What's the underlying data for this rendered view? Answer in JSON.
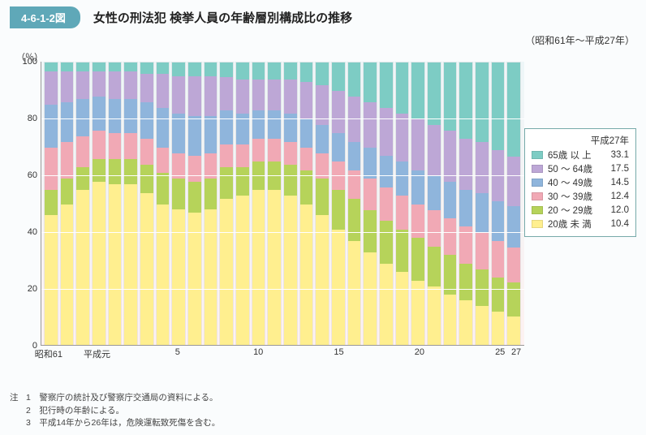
{
  "header": {
    "badge": "4-6-1-2図",
    "title": "女性の刑法犯 検挙人員の年齢層別構成比の推移",
    "subtitle": "（昭和61年～平成27年）"
  },
  "chart": {
    "type": "stacked-bar-100",
    "y_unit": "（％）",
    "ylim": [
      0,
      100
    ],
    "yticks": [
      0,
      20,
      40,
      60,
      80,
      100
    ],
    "grid_color": "#ffffff",
    "bg_gradient_top": "#eef6f8",
    "bg_gradient_bottom": "#fdf2f2",
    "series": [
      {
        "key": "u20",
        "label": "20歳 未 満",
        "color": "#ffef8f"
      },
      {
        "key": "a2029",
        "label": "20 ～ 29歳",
        "color": "#b6d35a"
      },
      {
        "key": "a3039",
        "label": "30 ～ 39歳",
        "color": "#f1a9b5"
      },
      {
        "key": "a4049",
        "label": "40 ～ 49歳",
        "color": "#8fb5dc"
      },
      {
        "key": "a5064",
        "label": "50 ～ 64歳",
        "color": "#bda7d6"
      },
      {
        "key": "a65",
        "label": "65歳 以 上",
        "color": "#7dccc4"
      }
    ],
    "years": [
      "昭和61",
      "62",
      "63",
      "平成元",
      "2",
      "3",
      "4",
      "5",
      "6",
      "7",
      "8",
      "9",
      "10",
      "11",
      "12",
      "13",
      "14",
      "15",
      "16",
      "17",
      "18",
      "19",
      "20",
      "21",
      "22",
      "23",
      "24",
      "25",
      "26",
      "27"
    ],
    "xticks": [
      {
        "i": 0,
        "label": "昭和61"
      },
      {
        "i": 3,
        "label": "平成元"
      },
      {
        "i": 8,
        "label": "5"
      },
      {
        "i": 13,
        "label": "10"
      },
      {
        "i": 18,
        "label": "15"
      },
      {
        "i": 23,
        "label": "20"
      },
      {
        "i": 28,
        "label": "25"
      },
      {
        "i": 29,
        "label": "27"
      }
    ],
    "data": [
      {
        "u20": 46,
        "a2029": 9,
        "a3039": 15,
        "a4049": 15,
        "a5064": 12,
        "a65": 3
      },
      {
        "u20": 50,
        "a2029": 9,
        "a3039": 13,
        "a4049": 14,
        "a5064": 11,
        "a65": 3
      },
      {
        "u20": 55,
        "a2029": 8,
        "a3039": 11,
        "a4049": 13,
        "a5064": 10,
        "a65": 3
      },
      {
        "u20": 58,
        "a2029": 8,
        "a3039": 10,
        "a4049": 12,
        "a5064": 9,
        "a65": 3
      },
      {
        "u20": 57,
        "a2029": 9,
        "a3039": 9,
        "a4049": 12,
        "a5064": 10,
        "a65": 3
      },
      {
        "u20": 57,
        "a2029": 9,
        "a3039": 9,
        "a4049": 12,
        "a5064": 10,
        "a65": 3
      },
      {
        "u20": 54,
        "a2029": 10,
        "a3039": 9,
        "a4049": 13,
        "a5064": 10,
        "a65": 4
      },
      {
        "u20": 50,
        "a2029": 11,
        "a3039": 9,
        "a4049": 14,
        "a5064": 12,
        "a65": 4
      },
      {
        "u20": 48,
        "a2029": 11,
        "a3039": 9,
        "a4049": 14,
        "a5064": 13,
        "a65": 5
      },
      {
        "u20": 47,
        "a2029": 11,
        "a3039": 9,
        "a4049": 14,
        "a5064": 14,
        "a65": 5
      },
      {
        "u20": 48,
        "a2029": 11,
        "a3039": 9,
        "a4049": 13,
        "a5064": 14,
        "a65": 5
      },
      {
        "u20": 52,
        "a2029": 11,
        "a3039": 8,
        "a4049": 12,
        "a5064": 12,
        "a65": 5
      },
      {
        "u20": 53,
        "a2029": 10,
        "a3039": 8,
        "a4049": 11,
        "a5064": 12,
        "a65": 6
      },
      {
        "u20": 55,
        "a2029": 10,
        "a3039": 8,
        "a4049": 10,
        "a5064": 11,
        "a65": 6
      },
      {
        "u20": 55,
        "a2029": 10,
        "a3039": 8,
        "a4049": 10,
        "a5064": 11,
        "a65": 6
      },
      {
        "u20": 53,
        "a2029": 11,
        "a3039": 8,
        "a4049": 10,
        "a5064": 12,
        "a65": 6
      },
      {
        "u20": 50,
        "a2029": 12,
        "a3039": 8,
        "a4049": 10,
        "a5064": 13,
        "a65": 7
      },
      {
        "u20": 46,
        "a2029": 13,
        "a3039": 9,
        "a4049": 10,
        "a5064": 14,
        "a65": 8
      },
      {
        "u20": 41,
        "a2029": 14,
        "a3039": 10,
        "a4049": 10,
        "a5064": 15,
        "a65": 10
      },
      {
        "u20": 37,
        "a2029": 15,
        "a3039": 10,
        "a4049": 10,
        "a5064": 16,
        "a65": 12
      },
      {
        "u20": 33,
        "a2029": 15,
        "a3039": 11,
        "a4049": 11,
        "a5064": 16,
        "a65": 14
      },
      {
        "u20": 29,
        "a2029": 15,
        "a3039": 12,
        "a4049": 11,
        "a5064": 17,
        "a65": 16
      },
      {
        "u20": 26,
        "a2029": 15,
        "a3039": 12,
        "a4049": 12,
        "a5064": 17,
        "a65": 18
      },
      {
        "u20": 23,
        "a2029": 15,
        "a3039": 12,
        "a4049": 12,
        "a5064": 18,
        "a65": 20
      },
      {
        "u20": 21,
        "a2029": 14,
        "a3039": 13,
        "a4049": 12,
        "a5064": 18,
        "a65": 22
      },
      {
        "u20": 18,
        "a2029": 14,
        "a3039": 13,
        "a4049": 13,
        "a5064": 18,
        "a65": 24
      },
      {
        "u20": 16,
        "a2029": 13,
        "a3039": 13,
        "a4049": 13,
        "a5064": 18,
        "a65": 27
      },
      {
        "u20": 14,
        "a2029": 13,
        "a3039": 13,
        "a4049": 14,
        "a5064": 18,
        "a65": 28
      },
      {
        "u20": 12,
        "a2029": 12,
        "a3039": 13,
        "a4049": 14,
        "a5064": 18,
        "a65": 31
      },
      {
        "u20": 10.4,
        "a2029": 12.0,
        "a3039": 12.4,
        "a4049": 14.5,
        "a5064": 17.5,
        "a65": 33.1
      }
    ]
  },
  "legend": {
    "title": "平成27年",
    "rows": [
      {
        "key": "a65",
        "value": "33.1"
      },
      {
        "key": "a5064",
        "value": "17.5"
      },
      {
        "key": "a4049",
        "value": "14.5"
      },
      {
        "key": "a3039",
        "value": "12.4"
      },
      {
        "key": "a2029",
        "value": "12.0"
      },
      {
        "key": "u20",
        "value": "10.4"
      }
    ]
  },
  "notes": {
    "head": "注",
    "items": [
      "1　警察庁の統計及び警察庁交通局の資料による。",
      "2　犯行時の年齢による。",
      "3　平成14年から26年は，危険運転致死傷を含む。"
    ]
  }
}
